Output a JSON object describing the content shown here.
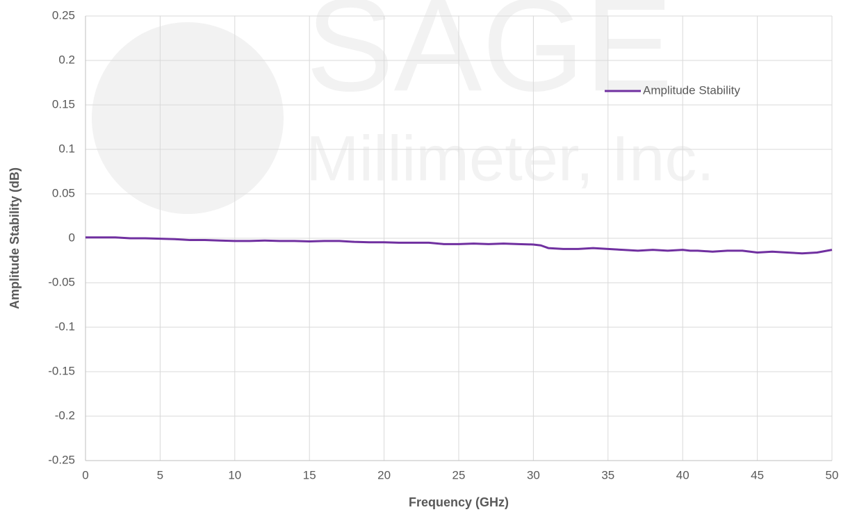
{
  "chart_data": {
    "type": "line",
    "watermark": [
      "SAGE",
      "Millimeter, Inc."
    ],
    "xlabel": "Frequency (GHz)",
    "ylabel": "Amplitude Stability (dB)",
    "x": [
      0,
      1,
      2,
      3,
      4,
      5,
      6,
      7,
      8,
      9,
      10,
      11,
      12,
      13,
      14,
      15,
      16,
      17,
      18,
      19,
      20,
      21,
      22,
      23,
      24,
      25,
      26,
      27,
      28,
      29,
      30,
      30.5,
      31,
      32,
      33,
      34,
      35,
      36,
      37,
      38,
      39,
      40,
      40.5,
      41,
      42,
      43,
      44,
      45,
      46,
      47,
      48,
      49,
      50
    ],
    "series": [
      {
        "name": "Amplitude Stability",
        "color": "#7030a0",
        "values": [
          0.001,
          0.001,
          0.001,
          0.0,
          0.0,
          -0.0005,
          -0.001,
          -0.002,
          -0.002,
          -0.0025,
          -0.003,
          -0.003,
          -0.0025,
          -0.003,
          -0.003,
          -0.0035,
          -0.003,
          -0.003,
          -0.004,
          -0.0045,
          -0.0045,
          -0.005,
          -0.005,
          -0.005,
          -0.0065,
          -0.0065,
          -0.006,
          -0.0065,
          -0.006,
          -0.0065,
          -0.007,
          -0.008,
          -0.011,
          -0.012,
          -0.012,
          -0.011,
          -0.012,
          -0.013,
          -0.014,
          -0.013,
          -0.014,
          -0.013,
          -0.014,
          -0.014,
          -0.015,
          -0.014,
          -0.014,
          -0.016,
          -0.015,
          -0.016,
          -0.017,
          -0.016,
          -0.013
        ]
      }
    ],
    "xlim": [
      0,
      50
    ],
    "xticks": [
      0,
      5,
      10,
      15,
      20,
      25,
      30,
      35,
      40,
      45,
      50
    ],
    "ylim": [
      -0.25,
      0.25
    ],
    "yticks": [
      -0.25,
      -0.2,
      -0.15,
      -0.1,
      -0.05,
      0,
      0.05,
      0.1,
      0.15,
      0.2,
      0.25
    ],
    "grid": true,
    "legend": "upper right"
  }
}
